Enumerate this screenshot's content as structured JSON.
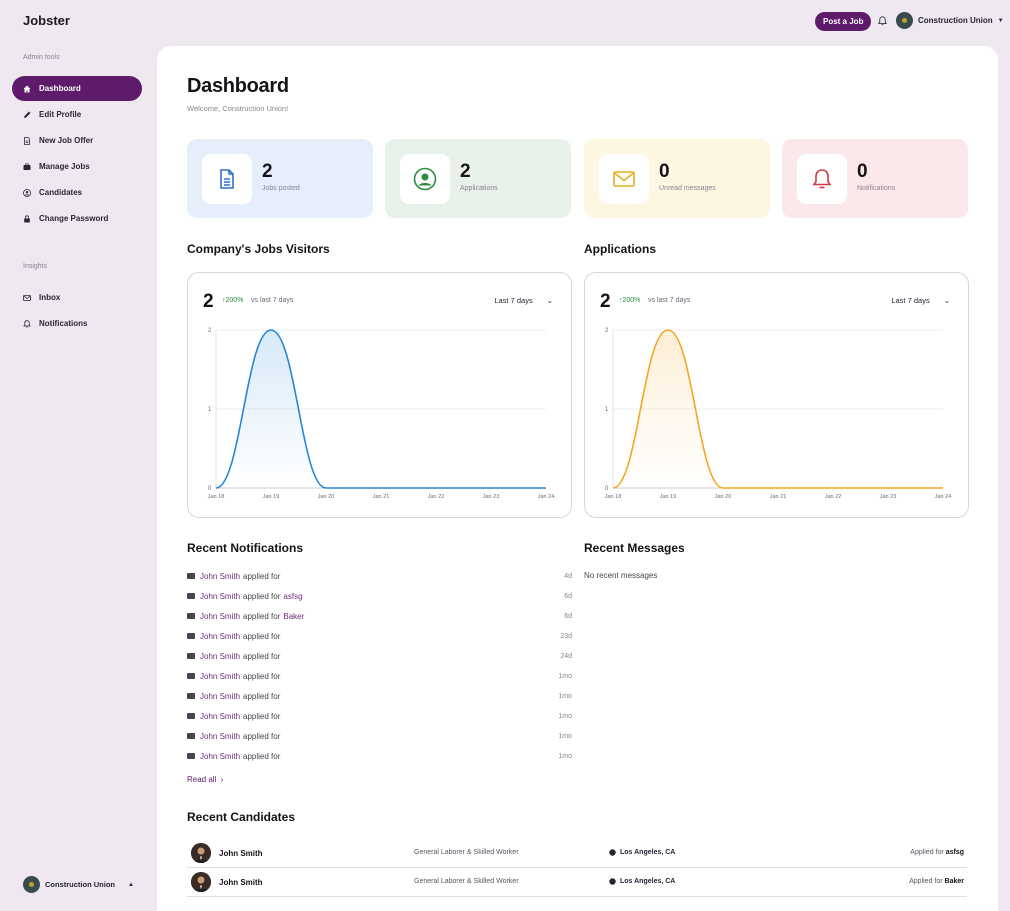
{
  "app": {
    "brand": "Jobster"
  },
  "topbar": {
    "post_job_label": "Post a Job",
    "user_name": "Construction Union"
  },
  "sidebar": {
    "admin_section": "Admin tools",
    "admin_items": [
      {
        "label": "Dashboard",
        "icon": "home-icon",
        "active": true
      },
      {
        "label": "Edit Profile",
        "icon": "pencil-icon"
      },
      {
        "label": "New Job Offer",
        "icon": "document-icon"
      },
      {
        "label": "Manage Jobs",
        "icon": "briefcase-icon"
      },
      {
        "label": "Candidates",
        "icon": "user-circle-icon"
      },
      {
        "label": "Change Password",
        "icon": "lock-icon"
      }
    ],
    "insights_section": "Insights",
    "insight_items": [
      {
        "label": "Inbox",
        "icon": "mail-icon"
      },
      {
        "label": "Notifications",
        "icon": "bell-icon"
      }
    ],
    "footer_user": "Construction Union"
  },
  "page": {
    "title": "Dashboard",
    "welcome": "Welcome, Construction Union!"
  },
  "stats": [
    {
      "value": "2",
      "label": "Jobs posted",
      "icon": "document-icon",
      "color": "#e6eefc",
      "icon_color": "#2f6fd3"
    },
    {
      "value": "2",
      "label": "Applications",
      "icon": "user-circle-icon",
      "color": "#e8f1ea",
      "icon_color": "#2e8b3e"
    },
    {
      "value": "0",
      "label": "Unread messages",
      "icon": "mail-icon",
      "color": "#fdf6e1",
      "icon_color": "#e0b020"
    },
    {
      "value": "0",
      "label": "Notifications",
      "icon": "bell-icon",
      "color": "#fbe8ea",
      "icon_color": "#d33a42"
    }
  ],
  "visitors": {
    "title": "Company's Jobs Visitors",
    "big": "2",
    "change": "200%",
    "vs": "vs last 7 days",
    "range": "Last 7 days"
  },
  "applications": {
    "title": "Applications",
    "big": "2",
    "change": "200%",
    "vs": "vs last 7 days",
    "range": "Last 7 days"
  },
  "chart_data": [
    {
      "type": "area",
      "title": "Company's Jobs Visitors",
      "x": [
        "Jan 18",
        "Jan 19",
        "Jan 20",
        "Jan 21",
        "Jan 22",
        "Jan 23",
        "Jan 24"
      ],
      "values": [
        0,
        2,
        0,
        0,
        0,
        0,
        0
      ],
      "ylim": [
        0,
        2
      ],
      "yticks": [
        "0",
        "1",
        "2"
      ],
      "grid": true,
      "color": "#2386d8"
    },
    {
      "type": "area",
      "title": "Applications",
      "x": [
        "Jan 18",
        "Jan 19",
        "Jan 20",
        "Jan 21",
        "Jan 22",
        "Jan 23",
        "Jan 24"
      ],
      "values": [
        0,
        2,
        0,
        0,
        0,
        0,
        0
      ],
      "ylim": [
        0,
        2
      ],
      "yticks": [
        "0",
        "1",
        "2"
      ],
      "grid": true,
      "color": "#f5a623"
    }
  ],
  "notifications": {
    "title": "Recent Notifications",
    "items": [
      {
        "name": "John Smith",
        "text": "applied for",
        "job": "",
        "time": "4d"
      },
      {
        "name": "John Smith",
        "text": "applied for",
        "job": "asfsg",
        "time": "6d"
      },
      {
        "name": "John Smith",
        "text": "applied for",
        "job": "Baker",
        "time": "6d"
      },
      {
        "name": "John Smith",
        "text": "applied for",
        "job": "",
        "time": "23d"
      },
      {
        "name": "John Smith",
        "text": "applied for",
        "job": "",
        "time": "24d"
      },
      {
        "name": "John Smith",
        "text": "applied for",
        "job": "",
        "time": "1mo"
      },
      {
        "name": "John Smith",
        "text": "applied for",
        "job": "",
        "time": "1mo"
      },
      {
        "name": "John Smith",
        "text": "applied for",
        "job": "",
        "time": "1mo"
      },
      {
        "name": "John Smith",
        "text": "applied for",
        "job": "",
        "time": "1mo"
      },
      {
        "name": "John Smith",
        "text": "applied for",
        "job": "",
        "time": "1mo"
      }
    ],
    "read_all": "Read all"
  },
  "messages": {
    "title": "Recent Messages",
    "empty": "No recent messages"
  },
  "candidates": {
    "title": "Recent Candidates",
    "rows": [
      {
        "name": "John Smith",
        "role": "General Laborer & Skilled Worker",
        "location": "Los Angeles, CA",
        "applied_prefix": "Applied for",
        "job": "asfsg"
      },
      {
        "name": "John Smith",
        "role": "General Laborer & Skilled Worker",
        "location": "Los Angeles, CA",
        "applied_prefix": "Applied for",
        "job": "Baker"
      }
    ]
  }
}
